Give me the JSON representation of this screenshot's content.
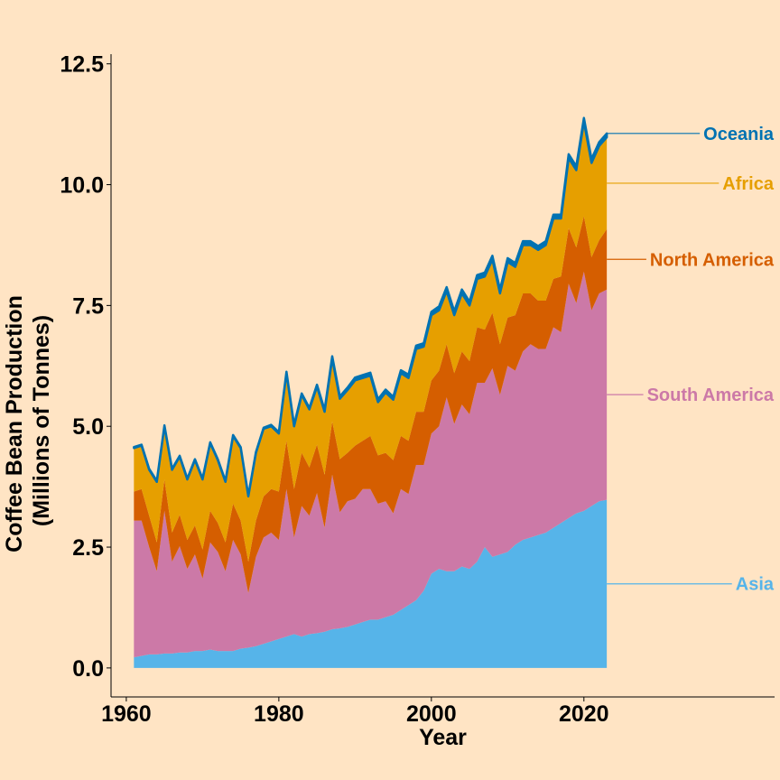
{
  "chart_data": {
    "type": "area",
    "stacked": true,
    "title": "",
    "xlabel": "Year",
    "ylabel": [
      "Coffee Bean Production",
      "(Millions of Tonnes)"
    ],
    "xlim": [
      1958,
      2045
    ],
    "ylim": [
      -0.6,
      12.7
    ],
    "xticks": [
      1960,
      1980,
      2000,
      2020
    ],
    "yticks": [
      0.0,
      2.5,
      5.0,
      7.5,
      10.0,
      12.5
    ],
    "ytick_labels": [
      "0.0",
      "2.5",
      "5.0",
      "7.5",
      "10.0",
      "12.5"
    ],
    "xtick_labels": [
      "1960",
      "1980",
      "2000",
      "2020"
    ],
    "grid": false,
    "legend": "direct labels at right",
    "x": [
      1961,
      1962,
      1963,
      1964,
      1965,
      1966,
      1967,
      1968,
      1969,
      1970,
      1971,
      1972,
      1973,
      1974,
      1975,
      1976,
      1977,
      1978,
      1979,
      1980,
      1981,
      1982,
      1983,
      1984,
      1985,
      1986,
      1987,
      1988,
      1989,
      1990,
      1991,
      1992,
      1993,
      1994,
      1995,
      1996,
      1997,
      1998,
      1999,
      2000,
      2001,
      2002,
      2003,
      2004,
      2005,
      2006,
      2007,
      2008,
      2009,
      2010,
      2011,
      2012,
      2013,
      2014,
      2015,
      2016,
      2017,
      2018,
      2019,
      2020,
      2021,
      2022,
      2023
    ],
    "series": [
      {
        "name": "Asia",
        "color": "#56B4E9",
        "values": [
          0.22,
          0.25,
          0.28,
          0.28,
          0.3,
          0.3,
          0.32,
          0.32,
          0.35,
          0.35,
          0.38,
          0.35,
          0.35,
          0.35,
          0.4,
          0.42,
          0.45,
          0.5,
          0.55,
          0.6,
          0.65,
          0.7,
          0.65,
          0.7,
          0.72,
          0.75,
          0.8,
          0.82,
          0.85,
          0.9,
          0.95,
          1.0,
          1.0,
          1.05,
          1.1,
          1.2,
          1.3,
          1.4,
          1.6,
          1.95,
          2.05,
          2.0,
          2.0,
          2.1,
          2.05,
          2.2,
          2.5,
          2.3,
          2.35,
          2.4,
          2.55,
          2.65,
          2.7,
          2.75,
          2.8,
          2.9,
          3.0,
          3.1,
          3.2,
          3.25,
          3.35,
          3.45,
          3.48
        ]
      },
      {
        "name": "South America",
        "color": "#CC79A7",
        "values": [
          2.83,
          2.8,
          2.22,
          1.72,
          2.95,
          1.9,
          2.2,
          1.73,
          2.0,
          1.5,
          2.22,
          2.05,
          1.65,
          2.3,
          1.95,
          1.13,
          1.85,
          2.2,
          2.25,
          2.05,
          3.05,
          2.0,
          2.7,
          2.45,
          2.9,
          2.15,
          3.2,
          2.4,
          2.6,
          2.6,
          2.75,
          2.7,
          2.4,
          2.4,
          2.1,
          2.5,
          2.3,
          2.8,
          2.6,
          2.9,
          2.95,
          3.6,
          3.05,
          3.35,
          3.2,
          3.7,
          3.4,
          3.9,
          3.3,
          3.85,
          3.6,
          3.9,
          4.0,
          3.85,
          3.8,
          4.15,
          3.95,
          4.85,
          4.35,
          4.95,
          4.05,
          4.3,
          4.35
        ]
      },
      {
        "name": "North America",
        "color": "#D55E00",
        "values": [
          0.6,
          0.65,
          0.65,
          0.6,
          0.65,
          0.6,
          0.65,
          0.6,
          0.6,
          0.6,
          0.65,
          0.6,
          0.6,
          0.75,
          0.7,
          0.65,
          0.75,
          0.85,
          0.9,
          1.0,
          1.0,
          1.0,
          1.1,
          1.0,
          1.0,
          1.1,
          1.1,
          1.1,
          1.0,
          1.1,
          1.0,
          1.1,
          1.0,
          1.0,
          1.1,
          1.1,
          1.1,
          1.1,
          1.1,
          1.1,
          1.15,
          1.1,
          1.05,
          1.1,
          1.1,
          1.15,
          1.1,
          1.15,
          1.05,
          1.0,
          1.15,
          1.2,
          1.05,
          1.0,
          1.0,
          1.0,
          1.15,
          1.15,
          1.15,
          1.15,
          1.1,
          1.1,
          1.25
        ]
      },
      {
        "name": "Africa",
        "color": "#E69F00",
        "values": [
          0.9,
          0.9,
          0.95,
          1.25,
          1.1,
          1.3,
          1.2,
          1.25,
          1.35,
          1.45,
          1.4,
          1.3,
          1.25,
          1.4,
          1.5,
          1.35,
          1.4,
          1.4,
          1.3,
          1.2,
          1.4,
          1.3,
          1.2,
          1.2,
          1.2,
          1.3,
          1.3,
          1.25,
          1.3,
          1.35,
          1.3,
          1.25,
          1.1,
          1.25,
          1.25,
          1.3,
          1.3,
          1.3,
          1.35,
          1.35,
          1.25,
          1.1,
          1.2,
          1.2,
          1.15,
          1.0,
          1.1,
          1.1,
          1.05,
          1.15,
          1.0,
          1.0,
          1.0,
          1.05,
          1.15,
          1.25,
          1.2,
          1.45,
          1.6,
          1.95,
          1.95,
          1.95,
          1.9
        ]
      },
      {
        "name": "Oceania",
        "color": "#0072B2",
        "values": [
          0.02,
          0.02,
          0.02,
          0.02,
          0.02,
          0.02,
          0.02,
          0.02,
          0.02,
          0.02,
          0.02,
          0.02,
          0.02,
          0.02,
          0.02,
          0.02,
          0.02,
          0.02,
          0.03,
          0.03,
          0.03,
          0.03,
          0.03,
          0.03,
          0.04,
          0.04,
          0.05,
          0.05,
          0.05,
          0.06,
          0.06,
          0.06,
          0.06,
          0.06,
          0.06,
          0.06,
          0.07,
          0.07,
          0.07,
          0.07,
          0.08,
          0.08,
          0.08,
          0.08,
          0.08,
          0.08,
          0.08,
          0.08,
          0.08,
          0.08,
          0.08,
          0.08,
          0.08,
          0.08,
          0.08,
          0.08,
          0.08,
          0.08,
          0.08,
          0.08,
          0.08,
          0.08,
          0.08
        ]
      }
    ]
  }
}
